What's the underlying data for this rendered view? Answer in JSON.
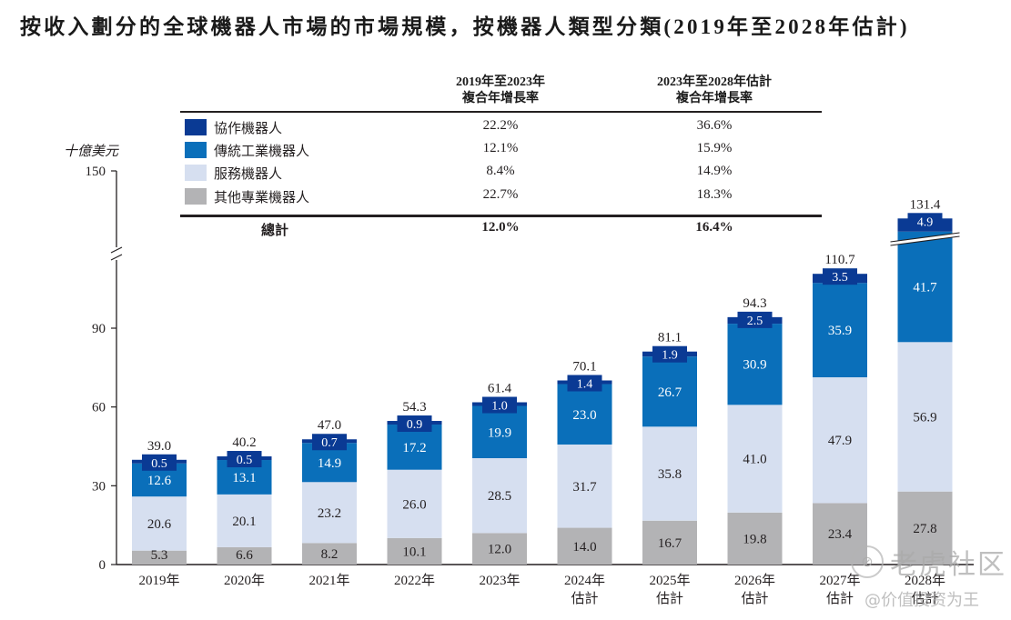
{
  "title": "按收入劃分的全球機器人市場的市場規模，按機器人類型分類(2019年至2028年估計)",
  "cagr_table": {
    "headers": [
      {
        "line1": "2019年至2023年",
        "line2": "複合年增長率"
      },
      {
        "line1": "2023年至2028年估計",
        "line2": "複合年增長率"
      }
    ],
    "rows": [
      {
        "label": "協作機器人",
        "color": "#0a3a94",
        "cagr_2019_2023": "22.2%",
        "cagr_2023_2028": "36.6%"
      },
      {
        "label": "傳統工業機器人",
        "color": "#0a6fba",
        "cagr_2019_2023": "12.1%",
        "cagr_2023_2028": "15.9%"
      },
      {
        "label": "服務機器人",
        "color": "#d6dff0",
        "cagr_2019_2023": "8.4%",
        "cagr_2023_2028": "14.9%"
      },
      {
        "label": "其他專業機器人",
        "color": "#b3b3b5",
        "cagr_2019_2023": "22.7%",
        "cagr_2023_2028": "18.3%"
      }
    ],
    "total": {
      "label": "總計",
      "cagr_2019_2023": "12.0%",
      "cagr_2023_2028": "16.4%"
    }
  },
  "watermark": {
    "line1": "老虎社区",
    "line2": "@价值投资为王"
  },
  "chart_data": {
    "type": "bar",
    "stacked": true,
    "title": "按收入劃分的全球機器人市場的市場規模，按機器人類型分類(2019年至2028年估計)",
    "ylabel": "十億美元",
    "xlabel": "",
    "ylim": [
      0,
      150
    ],
    "yticks": [
      0,
      30,
      60,
      90,
      150
    ],
    "axis_break": "between 90 and 150",
    "grid": false,
    "legend": "top-center table",
    "categories": [
      {
        "year": "2019年",
        "note": ""
      },
      {
        "year": "2020年",
        "note": ""
      },
      {
        "year": "2021年",
        "note": ""
      },
      {
        "year": "2022年",
        "note": ""
      },
      {
        "year": "2023年",
        "note": ""
      },
      {
        "year": "2024年",
        "note": "估計"
      },
      {
        "year": "2025年",
        "note": "估計"
      },
      {
        "year": "2026年",
        "note": "估計"
      },
      {
        "year": "2027年",
        "note": "估計"
      },
      {
        "year": "2028年",
        "note": "估計"
      }
    ],
    "series": [
      {
        "name": "其他專業機器人",
        "color": "#b3b3b5",
        "label_color": "#231f20",
        "values": [
          5.3,
          6.6,
          8.2,
          10.1,
          12.0,
          14.0,
          16.7,
          19.8,
          23.4,
          27.8
        ]
      },
      {
        "name": "服務機器人",
        "color": "#d6dff0",
        "label_color": "#231f20",
        "values": [
          20.6,
          20.1,
          23.2,
          26.0,
          28.5,
          31.7,
          35.8,
          41.0,
          47.9,
          56.9
        ]
      },
      {
        "name": "傳統工業機器人",
        "color": "#0a6fba",
        "label_color": "#ffffff",
        "values": [
          12.6,
          13.1,
          14.9,
          17.2,
          19.9,
          23.0,
          26.7,
          30.9,
          35.9,
          41.7
        ]
      },
      {
        "name": "協作機器人",
        "color": "#0a3a94",
        "label_color": "#ffffff",
        "values": [
          0.5,
          0.5,
          0.7,
          0.9,
          1.0,
          1.4,
          1.9,
          2.5,
          3.5,
          4.9
        ]
      }
    ],
    "totals": [
      "39.0",
      "40.2",
      "47.0",
      "54.3",
      "61.4",
      "70.1",
      "81.1",
      "94.3",
      "110.7",
      "131.4"
    ],
    "series_labels": [
      [
        "5.3",
        "6.6",
        "8.2",
        "10.1",
        "12.0",
        "14.0",
        "16.7",
        "19.8",
        "23.4",
        "27.8"
      ],
      [
        "20.6",
        "20.1",
        "23.2",
        "26.0",
        "28.5",
        "31.7",
        "35.8",
        "41.0",
        "47.9",
        "56.9"
      ],
      [
        "12.6",
        "13.1",
        "14.9",
        "17.2",
        "19.9",
        "23.0",
        "26.7",
        "30.9",
        "35.9",
        "41.7"
      ],
      [
        "0.5",
        "0.5",
        "0.7",
        "0.9",
        "1.0",
        "1.4",
        "1.9",
        "2.5",
        "3.5",
        "4.9"
      ]
    ],
    "ytick_labels": [
      "0",
      "30",
      "60",
      "90",
      "150"
    ]
  }
}
